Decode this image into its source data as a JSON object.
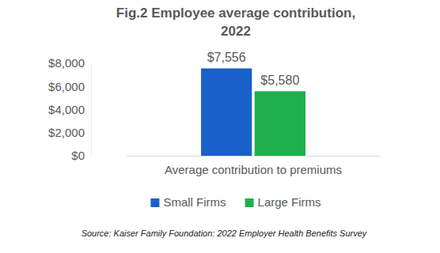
{
  "chart_data": {
    "type": "bar",
    "title": "Fig.2 Employee average contribution, 2022",
    "source": "Source: Kaiser Family Foundation: 2022 Employer Health Benefits Survey",
    "categories": [
      "Average contribution to premiums"
    ],
    "series": [
      {
        "name": "Small Firms",
        "color": "#1a60c9",
        "values": [
          7556
        ],
        "value_labels": [
          "$7,556"
        ]
      },
      {
        "name": "Large Firms",
        "color": "#1db04b",
        "values": [
          5580
        ],
        "value_labels": [
          "$5,580"
        ]
      }
    ],
    "ylim": [
      0,
      8000
    ],
    "yticks": [
      {
        "value": 0,
        "label": "$0"
      },
      {
        "value": 2000,
        "label": "$2,000"
      },
      {
        "value": 4000,
        "label": "$4,000"
      },
      {
        "value": 6000,
        "label": "$6,000"
      },
      {
        "value": 8000,
        "label": "$8,000"
      }
    ],
    "grid": false,
    "data_labels": true,
    "legend": "bottom"
  }
}
